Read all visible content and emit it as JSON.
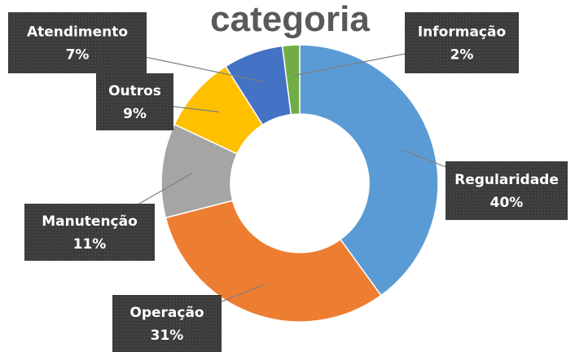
{
  "chart_data": {
    "type": "donut",
    "title": "categoria",
    "categories": [
      "Regularidade",
      "Operação",
      "Manutenção",
      "Outros",
      "Atendimento",
      "Informação"
    ],
    "values": [
      40,
      31,
      11,
      9,
      7,
      2
    ],
    "value_labels": [
      "40%",
      "31%",
      "11%",
      "9%",
      "7%",
      "2%"
    ],
    "colors": [
      "#5b9bd5",
      "#ed7d31",
      "#a5a5a5",
      "#ffc000",
      "#4472c4",
      "#70ad47"
    ]
  }
}
